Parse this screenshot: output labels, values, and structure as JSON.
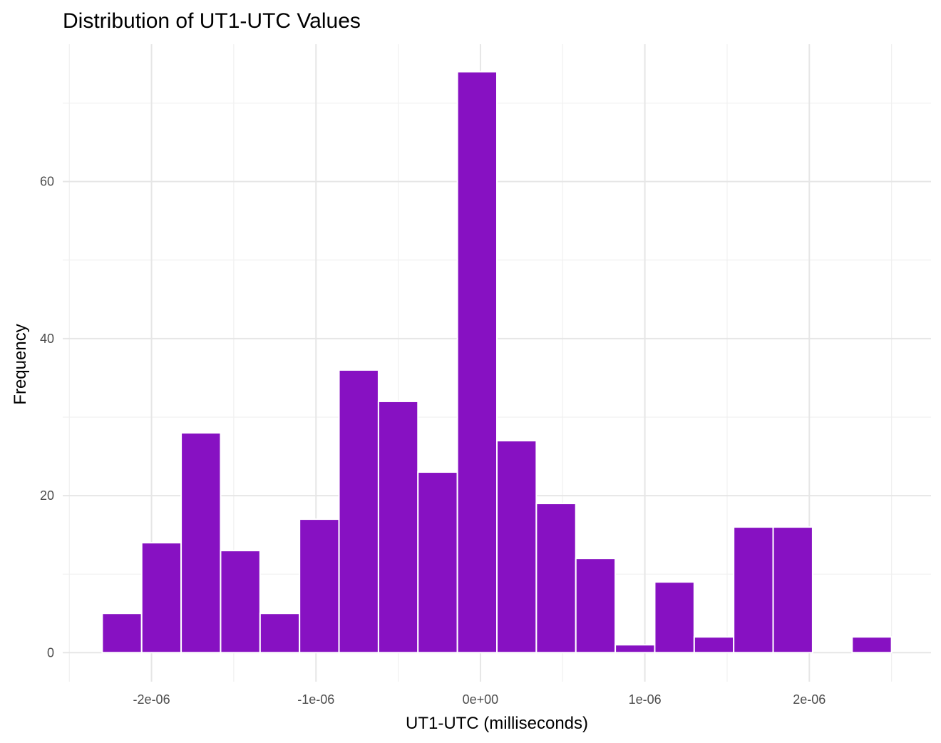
{
  "chart_data": {
    "type": "bar",
    "title": "Distribution of UT1-UTC Values",
    "xlabel": "UT1-UTC (milliseconds)",
    "ylabel": "Frequency",
    "bar_color": "#8711c2",
    "grid": true,
    "legend": "none",
    "bin_width": 2.4e-07,
    "bins": [
      {
        "start": -2.3e-06,
        "end": -2.06e-06,
        "count": 5
      },
      {
        "start": -2.06e-06,
        "end": -1.82e-06,
        "count": 14
      },
      {
        "start": -1.82e-06,
        "end": -1.58e-06,
        "count": 28
      },
      {
        "start": -1.58e-06,
        "end": -1.34e-06,
        "count": 13
      },
      {
        "start": -1.34e-06,
        "end": -1.1e-06,
        "count": 5
      },
      {
        "start": -1.1e-06,
        "end": -8.6e-07,
        "count": 17
      },
      {
        "start": -8.6e-07,
        "end": -6.2e-07,
        "count": 36
      },
      {
        "start": -6.2e-07,
        "end": -3.8e-07,
        "count": 32
      },
      {
        "start": -3.8e-07,
        "end": -1.4e-07,
        "count": 23
      },
      {
        "start": -1.4e-07,
        "end": 1e-07,
        "count": 74
      },
      {
        "start": 1e-07,
        "end": 3.4e-07,
        "count": 27
      },
      {
        "start": 3.4e-07,
        "end": 5.8e-07,
        "count": 19
      },
      {
        "start": 5.8e-07,
        "end": 8.2e-07,
        "count": 12
      },
      {
        "start": 8.2e-07,
        "end": 1.06e-06,
        "count": 1
      },
      {
        "start": 1.06e-06,
        "end": 1.3e-06,
        "count": 9
      },
      {
        "start": 1.3e-06,
        "end": 1.54e-06,
        "count": 2
      },
      {
        "start": 1.54e-06,
        "end": 1.78e-06,
        "count": 16
      },
      {
        "start": 1.78e-06,
        "end": 2.02e-06,
        "count": 16
      },
      {
        "start": 2.02e-06,
        "end": 2.26e-06,
        "count": 0
      },
      {
        "start": 2.26e-06,
        "end": 2.5e-06,
        "count": 2
      }
    ],
    "xlim": [
      -2.54e-06,
      2.74e-06
    ],
    "ylim": [
      -3.7,
      77.5
    ],
    "x_ticks": [
      {
        "value": -2e-06,
        "label": "-2e-06"
      },
      {
        "value": -1e-06,
        "label": "-1e-06"
      },
      {
        "value": 0,
        "label": "0e+00"
      },
      {
        "value": 1e-06,
        "label": "1e-06"
      },
      {
        "value": 2e-06,
        "label": "2e-06"
      }
    ],
    "x_minor_ticks": [
      -2.5e-06,
      -1.5e-06,
      -5e-07,
      5e-07,
      1.5e-06,
      2.5e-06
    ],
    "y_ticks": [
      {
        "value": 0,
        "label": "0"
      },
      {
        "value": 20,
        "label": "20"
      },
      {
        "value": 40,
        "label": "40"
      },
      {
        "value": 60,
        "label": "60"
      }
    ],
    "y_minor_ticks": [
      10,
      30,
      50,
      70
    ]
  }
}
